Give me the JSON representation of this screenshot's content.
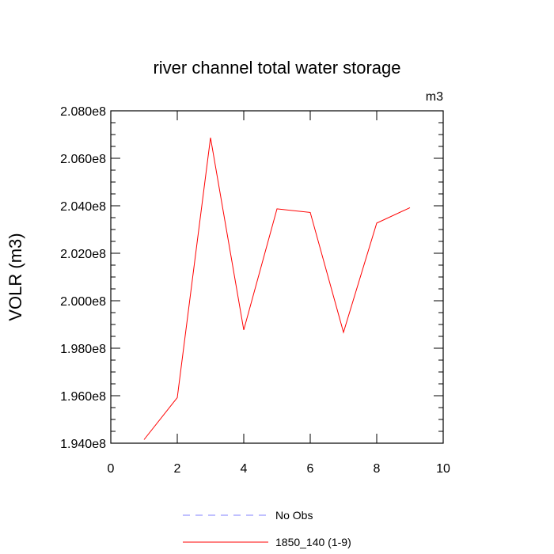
{
  "chart_data": {
    "type": "line",
    "title": "river channel total water storage",
    "units_label": "m3",
    "xlabel": "",
    "ylabel": "VOLR  (m3)",
    "xlim": [
      0,
      10
    ],
    "ylim": [
      194000000,
      208000000
    ],
    "x_ticks": [
      0,
      2,
      4,
      6,
      8,
      10
    ],
    "x_tick_labels": [
      "0",
      "2",
      "4",
      "6",
      "8",
      "10"
    ],
    "y_ticks": [
      194000000,
      196000000,
      198000000,
      200000000,
      202000000,
      204000000,
      206000000,
      208000000
    ],
    "y_tick_labels": [
      "1.940e8",
      "1.960e8",
      "1.980e8",
      "2.000e8",
      "2.020e8",
      "2.040e8",
      "2.060e8",
      "2.080e8"
    ],
    "grid": false,
    "legend_position": "bottom",
    "series": [
      {
        "name": "No Obs",
        "color": "#8080ff",
        "dash": "dashed",
        "x": [],
        "values": []
      },
      {
        "name": "1850_140 (1-9)",
        "color": "#ff0000",
        "dash": "solid",
        "x": [
          1,
          2,
          3,
          4,
          5,
          6,
          7,
          8,
          9
        ],
        "values": [
          194150000,
          195920000,
          206870000,
          198770000,
          203870000,
          203720000,
          198670000,
          203270000,
          203920000
        ]
      }
    ]
  }
}
